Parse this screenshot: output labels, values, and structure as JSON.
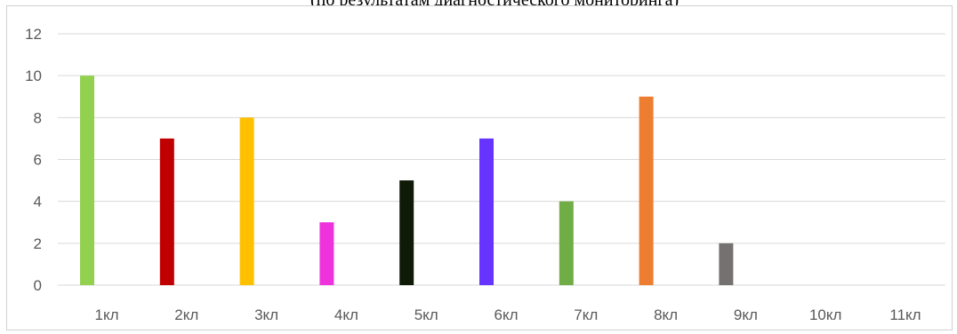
{
  "top_caption": "(по результатам диагностического мониторинга)",
  "chart_data": {
    "type": "bar",
    "categories": [
      "1кл",
      "2кл",
      "3кл",
      "4кл",
      "5кл",
      "6кл",
      "7кл",
      "8кл",
      "9кл",
      "10кл",
      "11кл"
    ],
    "values": [
      10,
      7,
      8,
      3,
      5,
      7,
      4,
      9,
      2,
      0,
      0
    ],
    "bar_colors": [
      "#92d050",
      "#c00000",
      "#ffc000",
      "#ee33dd",
      "#0f1a07",
      "#6633ff",
      "#70ad47",
      "#ed7d31",
      "#767171",
      "#5b9bd5",
      "#a5a5a5"
    ],
    "y_ticks": [
      "0",
      "2",
      "4",
      "6",
      "8",
      "10",
      "12"
    ],
    "ylim": [
      0,
      12
    ],
    "grid": true,
    "legend": "none"
  }
}
